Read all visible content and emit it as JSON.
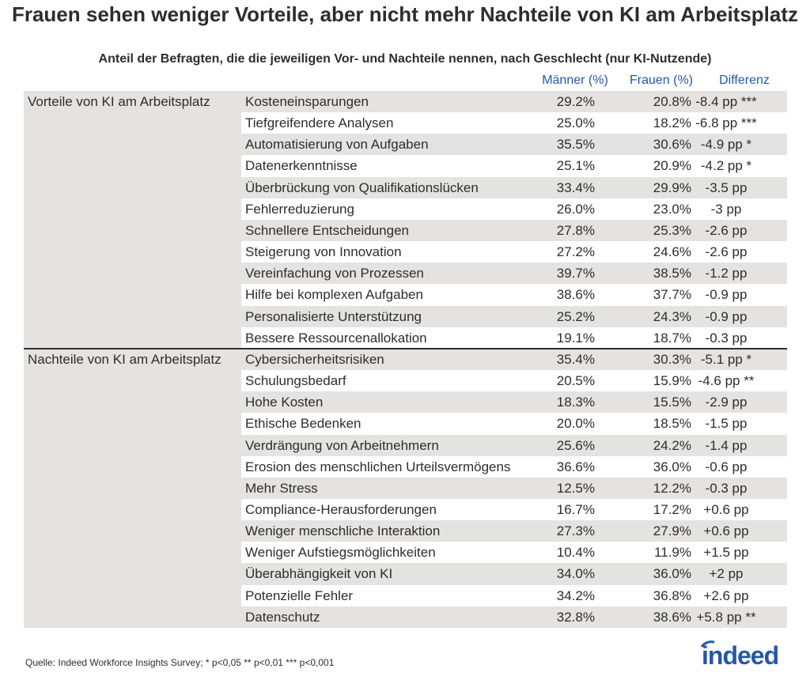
{
  "chart_data": {
    "type": "table",
    "title": "Frauen sehen weniger Vorteile, aber nicht mehr Nachteile von KI am Arbeitsplatz",
    "subtitle": "Anteil der Befragten, die die jeweiligen Vor- und Nachteile nennen, nach Geschlecht (nur KI-Nutzende)",
    "columns": [
      "Männer (%)",
      "Frauen (%)",
      "Differenz"
    ],
    "groups": [
      {
        "label": "Vorteile von KI am Arbeitsplatz",
        "rows": [
          {
            "item": "Kosteneinsparungen",
            "m": "29.2%",
            "f": "20.8%",
            "d": "-8.4 pp ***"
          },
          {
            "item": "Tiefgreifendere Analysen",
            "m": "25.0%",
            "f": "18.2%",
            "d": "-6.8 pp ***"
          },
          {
            "item": "Automatisierung von Aufgaben",
            "m": "35.5%",
            "f": "30.6%",
            "d": "-4.9 pp *"
          },
          {
            "item": "Datenerkenntnisse",
            "m": "25.1%",
            "f": "20.9%",
            "d": "-4.2 pp *"
          },
          {
            "item": "Überbrückung von Qualifikationslücken",
            "m": "33.4%",
            "f": "29.9%",
            "d": "-3.5 pp"
          },
          {
            "item": "Fehlerreduzierung",
            "m": "26.0%",
            "f": "23.0%",
            "d": "-3 pp"
          },
          {
            "item": "Schnellere Entscheidungen",
            "m": "27.8%",
            "f": "25.3%",
            "d": "-2.6 pp"
          },
          {
            "item": "Steigerung von Innovation",
            "m": "27.2%",
            "f": "24.6%",
            "d": "-2.6 pp"
          },
          {
            "item": "Vereinfachung von Prozessen",
            "m": "39.7%",
            "f": "38.5%",
            "d": "-1.2 pp"
          },
          {
            "item": "Hilfe bei komplexen Aufgaben",
            "m": "38.6%",
            "f": "37.7%",
            "d": "-0.9 pp"
          },
          {
            "item": "Personalisierte Unterstützung",
            "m": "25.2%",
            "f": "24.3%",
            "d": "-0.9 pp"
          },
          {
            "item": "Bessere Ressourcenallokation",
            "m": "19.1%",
            "f": "18.7%",
            "d": "-0.3 pp"
          }
        ]
      },
      {
        "label": "Nachteile von KI am Arbeitsplatz",
        "rows": [
          {
            "item": "Cybersicherheitsrisiken",
            "m": "35.4%",
            "f": "30.3%",
            "d": "-5.1 pp *"
          },
          {
            "item": "Schulungsbedarf",
            "m": "20.5%",
            "f": "15.9%",
            "d": "-4.6 pp **"
          },
          {
            "item": "Hohe Kosten",
            "m": "18.3%",
            "f": "15.5%",
            "d": "-2.9 pp"
          },
          {
            "item": "Ethische Bedenken",
            "m": "20.0%",
            "f": "18.5%",
            "d": "-1.5 pp"
          },
          {
            "item": "Verdrängung von Arbeitnehmern",
            "m": "25.6%",
            "f": "24.2%",
            "d": "-1.4 pp"
          },
          {
            "item": "Erosion des menschlichen Urteilsvermögens",
            "m": "36.6%",
            "f": "36.0%",
            "d": "-0.6 pp"
          },
          {
            "item": "Mehr Stress",
            "m": "12.5%",
            "f": "12.2%",
            "d": "-0.3 pp"
          },
          {
            "item": "Compliance-Herausforderungen",
            "m": "16.7%",
            "f": "17.2%",
            "d": "+0.6 pp"
          },
          {
            "item": "Weniger menschliche Interaktion",
            "m": "27.3%",
            "f": "27.9%",
            "d": "+0.6 pp"
          },
          {
            "item": "Weniger Aufstiegsmöglichkeiten",
            "m": "10.4%",
            "f": "11.9%",
            "d": "+1.5 pp"
          },
          {
            "item": "Überabhängigkeit von KI",
            "m": "34.0%",
            "f": "36.0%",
            "d": "+2 pp"
          },
          {
            "item": "Potenzielle Fehler",
            "m": "34.2%",
            "f": "36.8%",
            "d": "+2.6 pp"
          },
          {
            "item": "Datenschutz",
            "m": "32.8%",
            "f": "38.6%",
            "d": "+5.8 pp **"
          }
        ]
      }
    ],
    "colors": {
      "header": "#2557a7",
      "stripe": "#e4e3e2",
      "logo": "#2557a7"
    }
  },
  "source": "Quelle: Indeed Workforce Insights Survey; * p<0,05  ** p<0,01  *** p<0,001",
  "logo": "indeed"
}
